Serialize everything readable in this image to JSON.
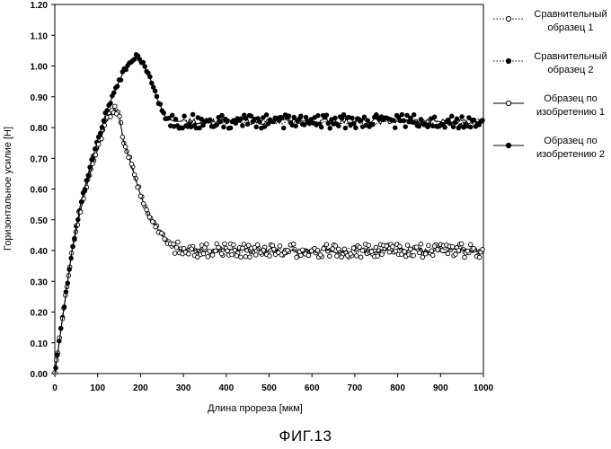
{
  "caption": "ФИГ.13",
  "chart_data": {
    "type": "line",
    "xlabel": "Длина прореза [мкм]",
    "ylabel": "Горизонтальное усилие [Н]",
    "xlim": [
      0,
      1000
    ],
    "ylim": [
      0,
      1.2
    ],
    "x_ticks": [
      "0",
      "100",
      "200",
      "300",
      "400",
      "500",
      "600",
      "700",
      "800",
      "900",
      "1000"
    ],
    "y_ticks": [
      "0.00",
      "0.10",
      "0.20",
      "0.30",
      "0.40",
      "0.50",
      "0.60",
      "0.70",
      "0.80",
      "0.90",
      "1.00",
      "1.10",
      "1.20"
    ],
    "legend_position": "right",
    "series": [
      {
        "name": [
          "Сравнительный",
          "образец  1"
        ],
        "line_style": "dotted",
        "marker": "open-circle",
        "points": [
          [
            0,
            0.0
          ],
          [
            20,
            0.2
          ],
          [
            40,
            0.4
          ],
          [
            60,
            0.55
          ],
          [
            80,
            0.65
          ],
          [
            100,
            0.74
          ],
          [
            120,
            0.83
          ],
          [
            140,
            0.87
          ],
          [
            150,
            0.85
          ],
          [
            160,
            0.75
          ],
          [
            180,
            0.68
          ],
          [
            200,
            0.58
          ],
          [
            220,
            0.51
          ],
          [
            240,
            0.47
          ],
          [
            260,
            0.43
          ],
          [
            280,
            0.41
          ],
          [
            300,
            0.4
          ],
          [
            1000,
            0.4
          ]
        ]
      },
      {
        "name": [
          "Сравнительный",
          "образец  2"
        ],
        "line_style": "dotted",
        "marker": "filled-circle",
        "points": [
          [
            0,
            0.0
          ],
          [
            20,
            0.2
          ],
          [
            40,
            0.4
          ],
          [
            60,
            0.55
          ],
          [
            80,
            0.66
          ],
          [
            100,
            0.76
          ],
          [
            120,
            0.85
          ],
          [
            140,
            0.92
          ],
          [
            160,
            0.98
          ],
          [
            180,
            1.02
          ],
          [
            190,
            1.03
          ],
          [
            200,
            1.02
          ],
          [
            220,
            0.97
          ],
          [
            240,
            0.89
          ],
          [
            260,
            0.83
          ],
          [
            280,
            0.82
          ],
          [
            1000,
            0.82
          ]
        ]
      },
      {
        "name": [
          "Образец  по",
          "изобретению 1"
        ],
        "line_style": "solid",
        "marker": "open-circle",
        "points": [
          [
            0,
            0.0
          ],
          [
            20,
            0.2
          ],
          [
            40,
            0.4
          ],
          [
            60,
            0.53
          ],
          [
            80,
            0.64
          ],
          [
            100,
            0.73
          ],
          [
            120,
            0.82
          ],
          [
            140,
            0.86
          ],
          [
            150,
            0.84
          ],
          [
            160,
            0.76
          ],
          [
            180,
            0.67
          ],
          [
            200,
            0.58
          ],
          [
            220,
            0.51
          ],
          [
            240,
            0.47
          ],
          [
            260,
            0.43
          ],
          [
            280,
            0.41
          ],
          [
            300,
            0.4
          ],
          [
            1000,
            0.4
          ]
        ]
      },
      {
        "name": [
          "Образец   по",
          "изобретению 2"
        ],
        "line_style": "solid",
        "marker": "filled-circle",
        "points": [
          [
            0,
            0.0
          ],
          [
            20,
            0.2
          ],
          [
            40,
            0.4
          ],
          [
            60,
            0.55
          ],
          [
            80,
            0.66
          ],
          [
            100,
            0.76
          ],
          [
            120,
            0.85
          ],
          [
            140,
            0.92
          ],
          [
            160,
            0.98
          ],
          [
            180,
            1.02
          ],
          [
            190,
            1.03
          ],
          [
            200,
            1.02
          ],
          [
            220,
            0.97
          ],
          [
            240,
            0.89
          ],
          [
            260,
            0.83
          ],
          [
            280,
            0.82
          ],
          [
            1000,
            0.82
          ]
        ]
      }
    ]
  }
}
